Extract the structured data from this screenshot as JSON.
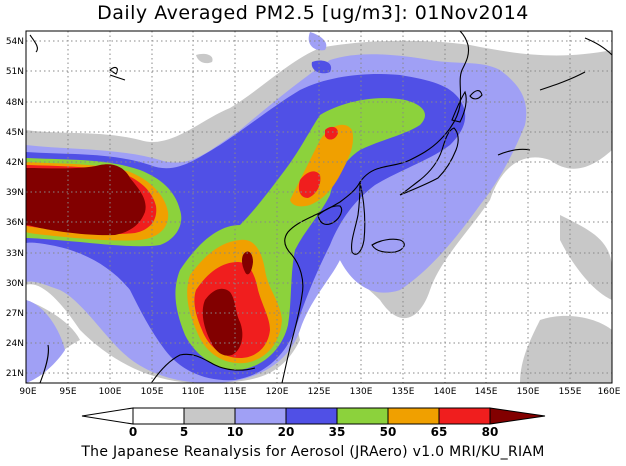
{
  "title": "Daily Averaged PM2.5 [ug/m3]: 01Nov2014",
  "footer": "The Japanese Reanalysis for Aerosol (JRAero) v1.0 MRI/KU_RIAM",
  "map": {
    "lon_range": [
      90,
      160
    ],
    "lat_range": [
      20,
      55
    ],
    "lon_ticks": [
      "90E",
      "95E",
      "100E",
      "105E",
      "110E",
      "115E",
      "120E",
      "125E",
      "130E",
      "135E",
      "140E",
      "145E",
      "150E",
      "155E",
      "160E"
    ],
    "lat_ticks": [
      "21N",
      "24N",
      "27N",
      "30N",
      "33N",
      "36N",
      "39N",
      "42N",
      "45N",
      "48N",
      "51N",
      "54N"
    ]
  },
  "colorbar": {
    "labels": [
      "0",
      "5",
      "10",
      "20",
      "35",
      "50",
      "65",
      "80"
    ],
    "colors": [
      "#ffffff",
      "#c8c8c8",
      "#a0a0f5",
      "#5050e6",
      "#8cd23c",
      "#f0a000",
      "#f01e1e",
      "#820000"
    ]
  }
}
